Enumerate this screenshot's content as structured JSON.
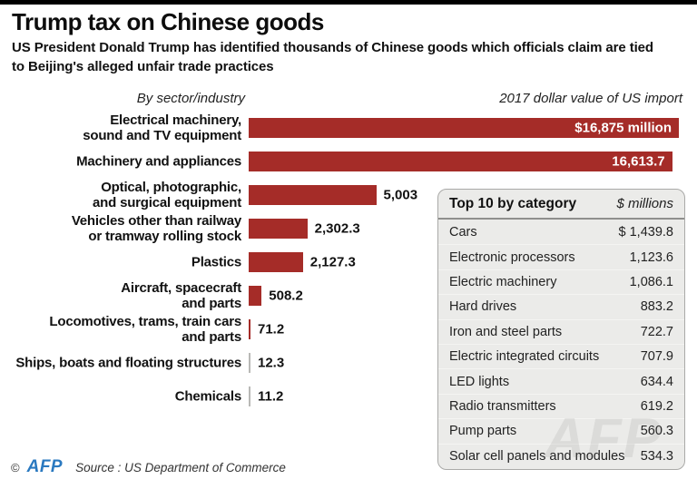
{
  "header": {
    "title": "Trump tax on Chinese goods",
    "subtitle": "US President Donald Trump has identified thousands of Chinese goods which officials claim are tied\nto Beijing's alleged unfair trade practices"
  },
  "chart_data": {
    "type": "bar",
    "orientation": "horizontal",
    "title": "Trump tax on Chinese goods",
    "left_header": "By sector/industry",
    "right_header": "2017 dollar value of US import",
    "xlim": [
      0,
      16875
    ],
    "bar_color": "#a52c28",
    "tiny_bar_color": "#b9b9b6",
    "categories": [
      "Electrical machinery, sound and TV equipment",
      "Machinery and appliances",
      "Optical, photographic, and surgical equipment",
      "Vehicles other than railway or tramway rolling stock",
      "Plastics",
      "Aircraft, spacecraft and parts",
      "Locomotives, trams, train cars and parts",
      "Ships, boats and floating structures",
      "Chemicals"
    ],
    "values": [
      16875,
      16613.7,
      5003,
      2302.3,
      2127.3,
      508.2,
      71.2,
      12.3,
      11.2
    ],
    "value_labels": [
      "$16,875 million",
      "16,613.7",
      "5,003",
      "2,302.3",
      "2,127.3",
      "508.2",
      "71.2",
      "12.3",
      "11.2"
    ],
    "label_lines": [
      [
        "Electrical machinery,",
        "sound and TV equipment"
      ],
      [
        "Machinery and appliances"
      ],
      [
        "Optical, photographic,",
        "and surgical equipment"
      ],
      [
        "Vehicles other than railway",
        "or tramway rolling stock"
      ],
      [
        "Plastics"
      ],
      [
        "Aircraft, spacecraft",
        "and parts"
      ],
      [
        "Locomotives, trams, train cars",
        "and parts"
      ],
      [
        "Ships, boats and floating structures"
      ],
      [
        "Chemicals"
      ]
    ],
    "inside_label_indices": [
      0,
      1
    ],
    "gray_bar_indices": [
      7,
      8
    ]
  },
  "table": {
    "title": "Top 10 by category",
    "unit": "$ millions",
    "rows": [
      {
        "name": "Cars",
        "value": "$ 1,439.8"
      },
      {
        "name": "Electronic processors",
        "value": "1,123.6"
      },
      {
        "name": "Electric machinery",
        "value": "1,086.1"
      },
      {
        "name": "Hard drives",
        "value": "883.2"
      },
      {
        "name": "Iron and steel parts",
        "value": "722.7"
      },
      {
        "name": "Electric integrated circuits",
        "value": "707.9"
      },
      {
        "name": "LED lights",
        "value": "634.4"
      },
      {
        "name": "Radio transmitters",
        "value": "619.2"
      },
      {
        "name": "Pump parts",
        "value": "560.3"
      },
      {
        "name": "Solar cell panels and modules",
        "value": "534.3"
      }
    ]
  },
  "watermark": "AFP",
  "footer": {
    "copyright": "©",
    "logo": "AFP",
    "source": "Source : US Department of Commerce"
  }
}
